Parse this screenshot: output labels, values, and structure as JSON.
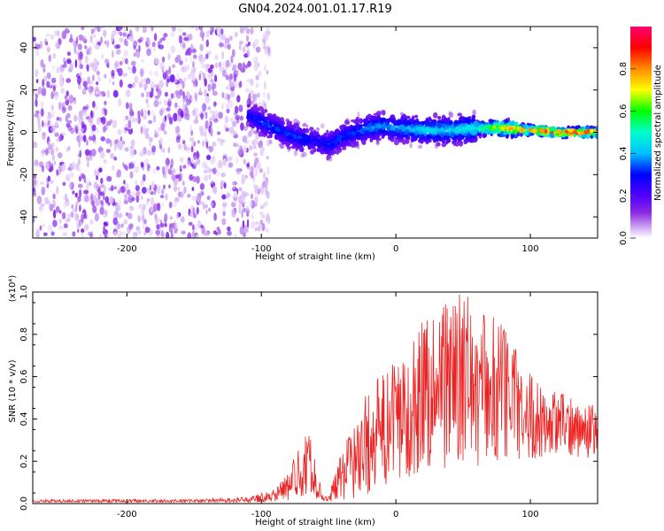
{
  "title": "GN04.2024.001.01.17.R19",
  "chart_data": [
    {
      "type": "heatmap",
      "xlabel": "Height of straight line (km)",
      "ylabel": "Frequency (Hz)",
      "xlim": [
        -270,
        150
      ],
      "ylim": [
        -50,
        50
      ],
      "x_ticks": [
        -200,
        -100,
        0,
        100
      ],
      "y_ticks": [
        -40,
        -20,
        0,
        20,
        40
      ],
      "colorbar": {
        "label": "Normalized spectral amplitude",
        "range": [
          0,
          1
        ],
        "ticks": [
          "0.0",
          "0.2",
          "0.4",
          "0.6",
          "0.8"
        ],
        "colors": [
          "#ffffff",
          "#cfa8f2",
          "#8a2be2",
          "#5200ff",
          "#0000ff",
          "#00bfff",
          "#00ffcc",
          "#00ff00",
          "#ffff00",
          "#ff8c00",
          "#ff0000",
          "#ff0070"
        ]
      },
      "noise_region_x": [
        -270,
        -100
      ],
      "ridge": {
        "x": [
          -110,
          -100,
          -90,
          -80,
          -70,
          -60,
          -50,
          -40,
          -30,
          -20,
          -10,
          0,
          20,
          40,
          60,
          80,
          100,
          120,
          150
        ],
        "frequency": [
          8,
          5,
          2,
          -1,
          -3,
          -4,
          -6,
          -2,
          0,
          2,
          3,
          2,
          1,
          1,
          2,
          2,
          1,
          0,
          0
        ],
        "peak_amplitude": [
          0.3,
          0.35,
          0.35,
          0.35,
          0.35,
          0.3,
          0.35,
          0.35,
          0.35,
          0.4,
          0.4,
          0.4,
          0.45,
          0.45,
          0.5,
          0.75,
          0.8,
          0.85,
          0.85
        ]
      },
      "grid": false
    },
    {
      "type": "line",
      "xlabel": "Height of straight line (km)",
      "ylabel": "SNR (10 * v/v)",
      "y_multiplier": "(x10⁴)",
      "xlim": [
        -270,
        150
      ],
      "ylim": [
        0,
        1.0
      ],
      "x_ticks": [
        -200,
        -100,
        0,
        100
      ],
      "y_ticks": [
        "0.0",
        "0.2",
        "0.4",
        "0.6",
        "0.8",
        "1.0"
      ],
      "color": "#ee2222",
      "envelope": {
        "x": [
          -270,
          -200,
          -150,
          -110,
          -90,
          -80,
          -70,
          -65,
          -60,
          -55,
          -50,
          -40,
          -30,
          -20,
          -10,
          0,
          10,
          20,
          30,
          40,
          50,
          60,
          70,
          80,
          90,
          100,
          110,
          120,
          130,
          140,
          150
        ],
        "baseline": [
          0.01,
          0.01,
          0.01,
          0.01,
          0.02,
          0.03,
          0.06,
          0.08,
          0.05,
          0.02,
          0.02,
          0.03,
          0.05,
          0.08,
          0.12,
          0.18,
          0.25,
          0.3,
          0.32,
          0.33,
          0.35,
          0.35,
          0.33,
          0.35,
          0.38,
          0.42,
          0.43,
          0.44,
          0.44,
          0.43,
          0.43
        ],
        "peak": [
          0.02,
          0.02,
          0.02,
          0.03,
          0.07,
          0.15,
          0.3,
          0.36,
          0.2,
          0.06,
          0.04,
          0.25,
          0.4,
          0.55,
          0.62,
          0.68,
          0.75,
          0.9,
          0.98,
          1.0,
          1.0,
          0.95,
          0.9,
          0.88,
          0.75,
          0.62,
          0.55,
          0.53,
          0.51,
          0.48,
          0.47
        ]
      },
      "grid": false
    }
  ]
}
